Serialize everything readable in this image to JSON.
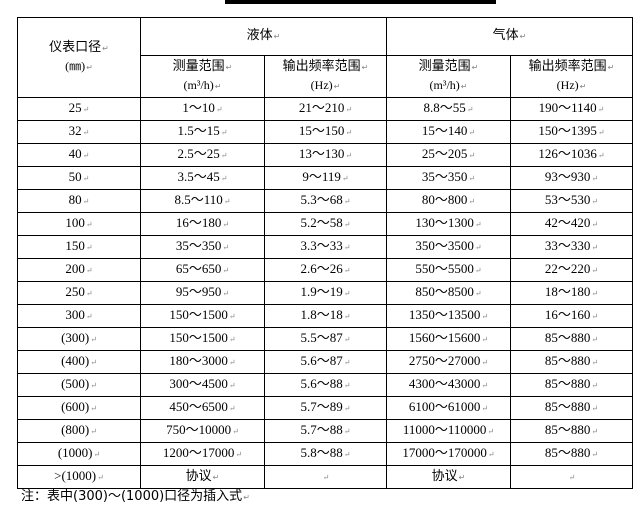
{
  "header": {
    "col1_title": "仪表口径",
    "col1_unit": "(㎜)",
    "liquid": "液体",
    "gas": "气体",
    "measure_range": "测量范围",
    "measure_unit": "(m³/h)",
    "freq_range": "输出频率范围",
    "freq_unit": "(Hz)"
  },
  "rows": [
    [
      "25",
      "1～10",
      "21～210",
      "8.8～55",
      "190～1140"
    ],
    [
      "32",
      "1.5～15",
      "15～150",
      "15～140",
      "150～1395"
    ],
    [
      "40",
      "2.5～25",
      "13～130",
      "25～205",
      "126～1036"
    ],
    [
      "50",
      "3.5～45",
      "9～119",
      "35～350",
      "93～930"
    ],
    [
      "80",
      "8.5～110",
      "5.3～68",
      "80～800",
      "53～530"
    ],
    [
      "100",
      "16～180",
      "5.2～58",
      "130～1300",
      "42～420"
    ],
    [
      "150",
      "35～350",
      "3.3～33",
      "350～3500",
      "33～330"
    ],
    [
      "200",
      "65～650",
      "2.6～26",
      "550～5500",
      "22～220"
    ],
    [
      "250",
      "95～950",
      "1.9～19",
      "850～8500",
      "18～180"
    ],
    [
      "300",
      "150～1500",
      "1.8～18",
      "1350～13500",
      "16～160"
    ],
    [
      "(300)",
      "150～1500",
      "5.5～87",
      "1560～15600",
      "85～880"
    ],
    [
      "(400)",
      "180～3000",
      "5.6～87",
      "2750～27000",
      "85～880"
    ],
    [
      "(500)",
      "300～4500",
      "5.6～88",
      "4300～43000",
      "85～880"
    ],
    [
      "(600)",
      "450～6500",
      "5.7～89",
      "6100～61000",
      "85～880"
    ],
    [
      "(800)",
      "750～10000",
      "5.7～88",
      "11000～110000",
      "85～880"
    ],
    [
      "(1000)",
      "1200～17000",
      "5.8～88",
      "17000～170000",
      "85～880"
    ],
    [
      ">(1000)",
      "协议",
      "",
      "协议",
      ""
    ]
  ],
  "note": "注：表中(300)～(1000)口径为插入式"
}
